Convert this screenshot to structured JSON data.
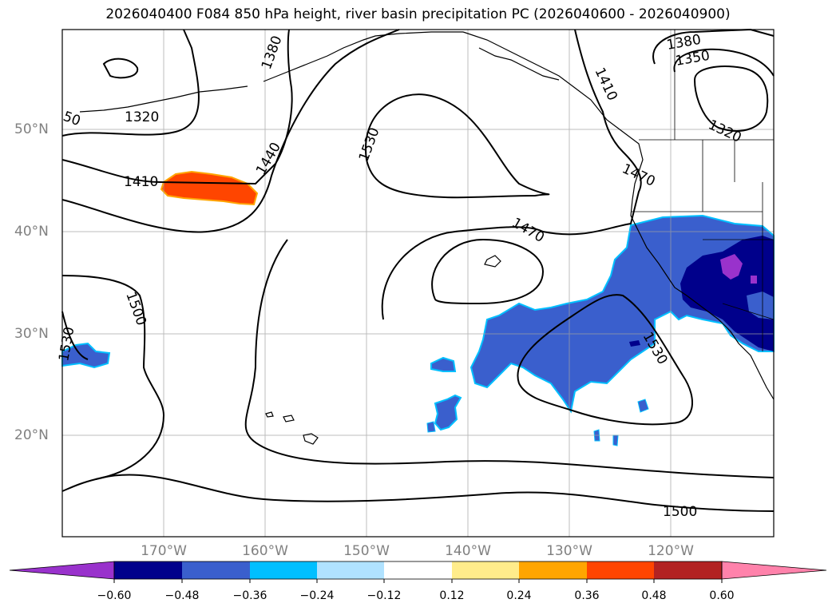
{
  "title": "2026040400 F084 850 hPa height, river basin precipitation PC (2026040600 - 2026040900)",
  "lat_labels": [
    "50°N",
    "40°N",
    "30°N",
    "20°N"
  ],
  "lon_labels": [
    "170°W",
    "160°W",
    "150°W",
    "140°W",
    "130°W",
    "120°W"
  ],
  "contour_labels": [
    "1320",
    "1380",
    "1410",
    "1440",
    "1530",
    "1470",
    "1500",
    "1530",
    "1410",
    "1470",
    "1380",
    "1350",
    "1320",
    "1530",
    "1500",
    "50"
  ],
  "colorbar": {
    "ticks": [
      "−0.60",
      "−0.48",
      "−0.36",
      "−0.24",
      "−0.12",
      "0.12",
      "0.24",
      "0.36",
      "0.48",
      "0.60"
    ],
    "colors": [
      "#9932CC",
      "#00008B",
      "#3A5FCD",
      "#00BFFF",
      "#B0E2FF",
      "#FFFFFF",
      "#FFEC8B",
      "#FFA500",
      "#FF4500",
      "#B22222",
      "#FF82AB"
    ]
  }
}
